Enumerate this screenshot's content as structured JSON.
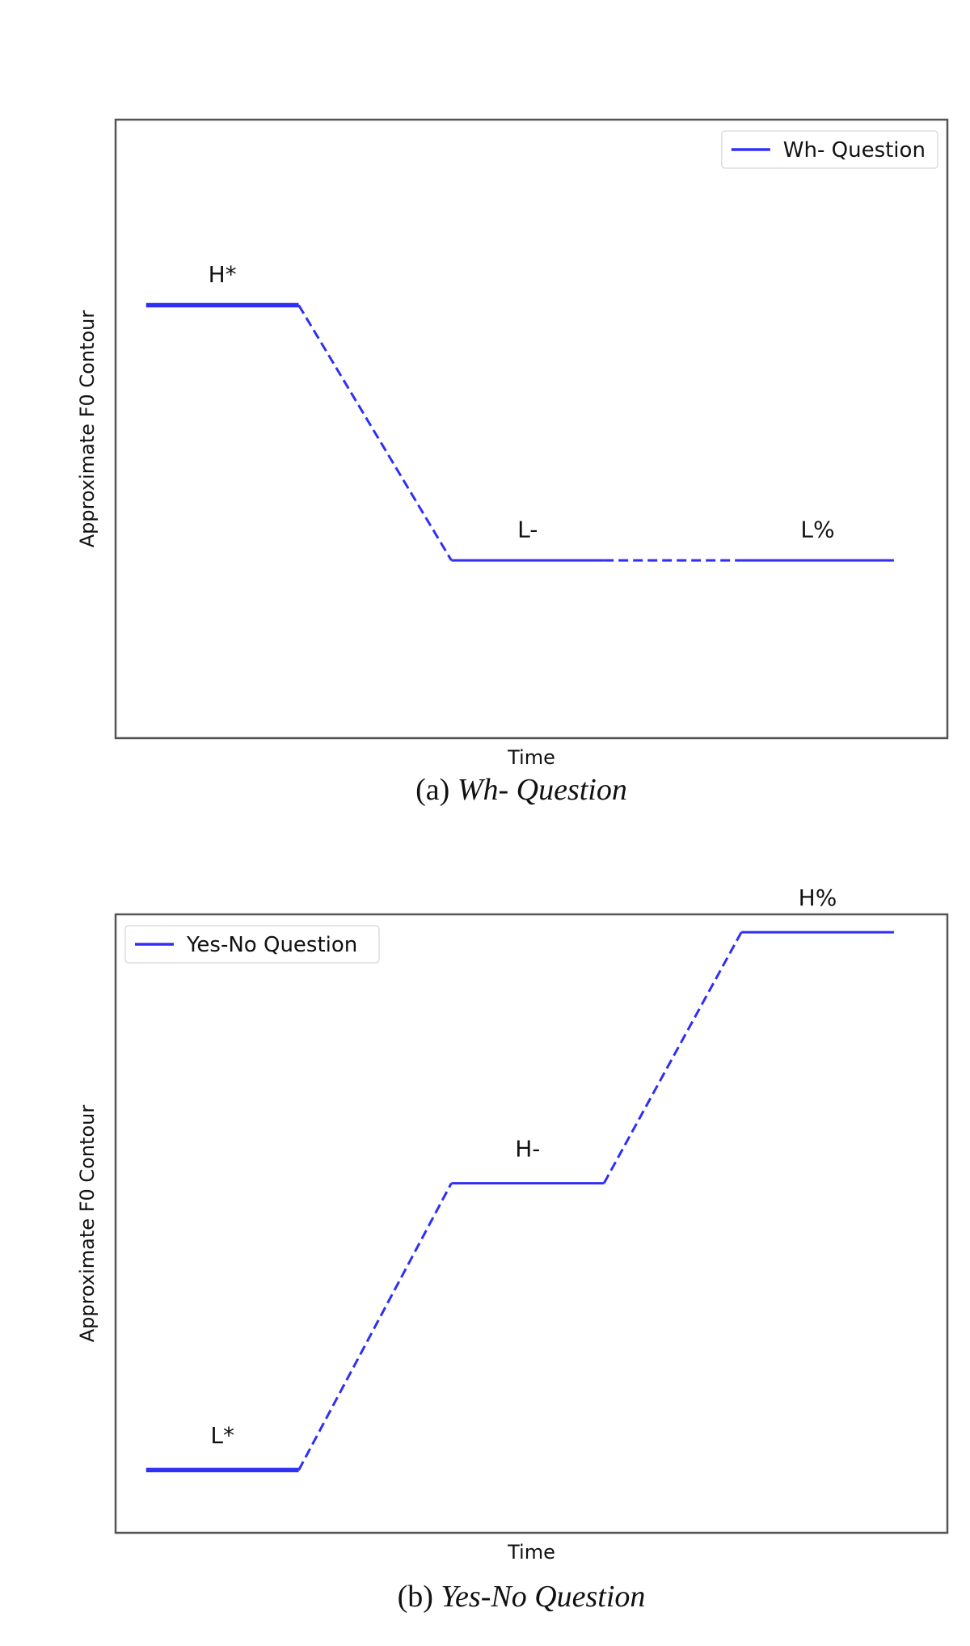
{
  "colors": {
    "line": "#2f2ff5",
    "axes": "#555555",
    "text": "#111111"
  },
  "chart_data": [
    {
      "type": "line",
      "caption_label": "(a)",
      "caption_title": "Wh- Question",
      "xlabel": "Time",
      "ylabel": "Approximate F0 Contour",
      "legend": {
        "label": "Wh- Question",
        "placement": "top-right"
      },
      "grid": false,
      "xlim": [
        0,
        5.45
      ],
      "ylim": [
        -1.2,
        2.8
      ],
      "series": [
        {
          "name": "Wh- Question",
          "x": [
            0.2,
            1.2
          ],
          "y": [
            1.6,
            1.6
          ],
          "style": "solid",
          "thick": true,
          "in_legend": true
        },
        {
          "x": [
            1.2,
            2.2
          ],
          "y": [
            1.6,
            -0.05
          ],
          "style": "dashed"
        },
        {
          "x": [
            2.2,
            3.2
          ],
          "y": [
            -0.05,
            -0.05
          ],
          "style": "solid"
        },
        {
          "x": [
            3.2,
            4.1
          ],
          "y": [
            -0.05,
            -0.05
          ],
          "style": "dashed"
        },
        {
          "x": [
            4.1,
            5.1
          ],
          "y": [
            -0.05,
            -0.05
          ],
          "style": "solid"
        }
      ],
      "annotations": [
        {
          "text": "H*",
          "x": 0.7,
          "y": 1.75
        },
        {
          "text": "L-",
          "x": 2.7,
          "y": 0.1
        },
        {
          "text": "L%",
          "x": 4.6,
          "y": 0.1
        }
      ]
    },
    {
      "type": "line",
      "caption_label": "(b)",
      "caption_title": "Yes-No Question",
      "xlabel": "Time",
      "ylabel": "Approximate F0 Contour",
      "legend": {
        "label": "Yes-No Question",
        "placement": "top-left"
      },
      "grid": false,
      "xlim": [
        0,
        5.45
      ],
      "ylim": [
        -0.35,
        3.1
      ],
      "series": [
        {
          "name": "Yes-No Question",
          "x": [
            0.2,
            1.2
          ],
          "y": [
            0,
            0
          ],
          "style": "solid",
          "thick": true,
          "in_legend": true
        },
        {
          "x": [
            1.2,
            2.2
          ],
          "y": [
            0,
            1.6
          ],
          "style": "dashed"
        },
        {
          "x": [
            2.2,
            3.2
          ],
          "y": [
            1.6,
            1.6
          ],
          "style": "solid"
        },
        {
          "x": [
            3.2,
            4.1
          ],
          "y": [
            1.6,
            3.0
          ],
          "style": "dashed"
        },
        {
          "x": [
            4.1,
            5.1
          ],
          "y": [
            3.0,
            3.0
          ],
          "style": "solid"
        }
      ],
      "annotations": [
        {
          "text": "L*",
          "x": 0.7,
          "y": 0.15
        },
        {
          "text": "H-",
          "x": 2.7,
          "y": 1.75
        },
        {
          "text": "H%",
          "x": 4.6,
          "y": 3.15
        }
      ]
    }
  ]
}
